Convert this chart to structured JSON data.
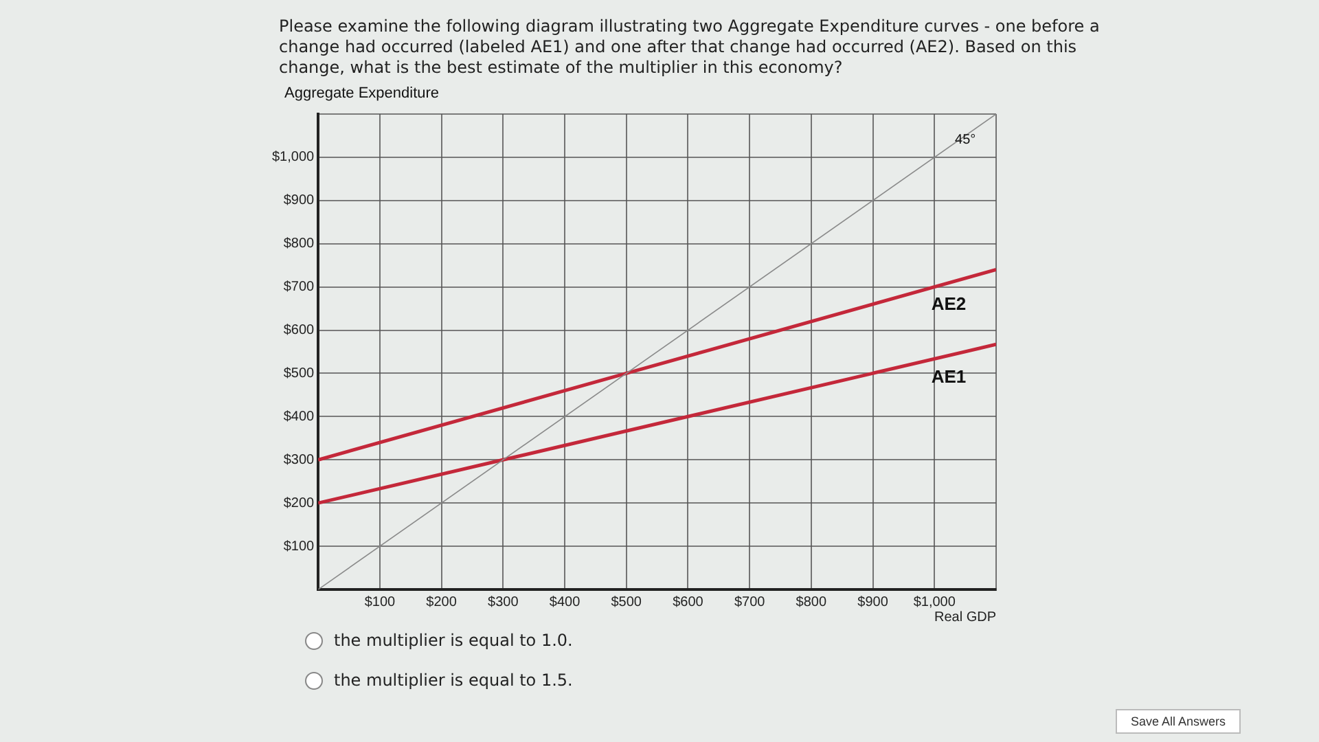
{
  "chart_data": {
    "type": "line",
    "title": "Please examine the following diagram illustrating two Aggregate Expenditure curves  - one before a change had occurred (labeled AE1) and one after that change had occurred (AE2).  Based on this change, what is the best estimate of the multiplier in this economy?",
    "xlabel": "Real GDP",
    "ylabel": "Aggregate Expenditure",
    "series": [
      {
        "color": "#8a8a8a",
        "x": [
          0,
          1100
        ],
        "values": [
          0,
          1100
        ]
      },
      {
        "name": "AE1",
        "color": "#c4283a",
        "x": [
          0,
          300,
          1100
        ],
        "values": [
          200,
          300,
          567
        ]
      },
      {
        "name": "AE2",
        "color": "#c4283a",
        "x": [
          0,
          500,
          1100
        ],
        "values": [
          300,
          500,
          740
        ]
      }
    ],
    "xlim": [
      0,
      1100
    ],
    "ylim": [
      0,
      1100
    ],
    "xticks": [
      {
        "value": 0,
        "label": null
      },
      {
        "value": 100,
        "label": "$100"
      },
      {
        "value": 200,
        "label": "$200"
      },
      {
        "value": 300,
        "label": "$300"
      },
      {
        "value": 400,
        "label": "$400"
      },
      {
        "value": 500,
        "label": "$500"
      },
      {
        "value": 600,
        "label": "$600"
      },
      {
        "value": 700,
        "label": "$700"
      },
      {
        "value": 800,
        "label": "$800"
      },
      {
        "value": 900,
        "label": "$900"
      },
      {
        "value": 1000,
        "label": "$1,000"
      },
      {
        "value": 1100,
        "label": null
      }
    ],
    "yticks": [
      {
        "value": 0,
        "label": null
      },
      {
        "value": 100,
        "label": "$100"
      },
      {
        "value": 200,
        "label": "$200"
      },
      {
        "value": 300,
        "label": "$300"
      },
      {
        "value": 400,
        "label": "$400"
      },
      {
        "value": 500,
        "label": "$500"
      },
      {
        "value": 600,
        "label": "$600"
      },
      {
        "value": 700,
        "label": "$700"
      },
      {
        "value": 800,
        "label": "$800"
      },
      {
        "value": 900,
        "label": "$900"
      },
      {
        "value": 1000,
        "label": "$1,000"
      },
      {
        "value": 1100,
        "label": null
      }
    ],
    "grid": true,
    "legend": false,
    "marker": "none",
    "line_style": "solid",
    "annotations": [
      {
        "text": "45°",
        "x": 1050,
        "y": 1040
      },
      "the multiplier is equal to 1.0.",
      "the multiplier is equal to 1.5.",
      "Save All Answers"
    ]
  }
}
